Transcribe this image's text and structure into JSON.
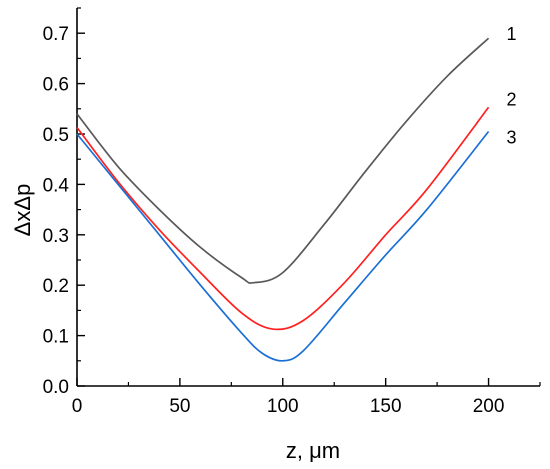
{
  "chart_data": {
    "type": "line",
    "xlabel": "z, μm",
    "ylabel": "ΔxΔp",
    "xlim": [
      0,
      225
    ],
    "ylim": [
      0,
      0.75
    ],
    "x_ticks": [
      0,
      50,
      100,
      150,
      200
    ],
    "x_tick_labels": [
      "0",
      "50",
      "100",
      "150",
      "200"
    ],
    "y_ticks": [
      0.0,
      0.1,
      0.2,
      0.3,
      0.4,
      0.5,
      0.6,
      0.7
    ],
    "y_tick_labels": [
      "0.0",
      "0.1",
      "0.2",
      "0.3",
      "0.4",
      "0.5",
      "0.6",
      "0.7"
    ],
    "grid": false,
    "legend": "none",
    "series": [
      {
        "label": "1",
        "color": "#595959",
        "x": [
          0,
          20,
          40,
          60,
          80,
          86,
          100,
          120,
          140,
          160,
          180,
          200
        ],
        "y": [
          0.54,
          0.435,
          0.35,
          0.275,
          0.215,
          0.205,
          0.225,
          0.32,
          0.425,
          0.525,
          0.615,
          0.69
        ]
      },
      {
        "label": "2",
        "color": "#ff2020",
        "x": [
          0,
          20,
          40,
          60,
          80,
          95,
          110,
          130,
          150,
          170,
          200
        ],
        "y": [
          0.513,
          0.405,
          0.31,
          0.225,
          0.145,
          0.113,
          0.13,
          0.205,
          0.3,
          0.39,
          0.553
        ]
      },
      {
        "label": "3",
        "color": "#1a6fd6",
        "x": [
          0,
          20,
          40,
          60,
          80,
          90,
          100,
          110,
          130,
          150,
          170,
          200
        ],
        "y": [
          0.5,
          0.4,
          0.3,
          0.2,
          0.105,
          0.065,
          0.05,
          0.07,
          0.165,
          0.26,
          0.35,
          0.505
        ]
      }
    ]
  }
}
